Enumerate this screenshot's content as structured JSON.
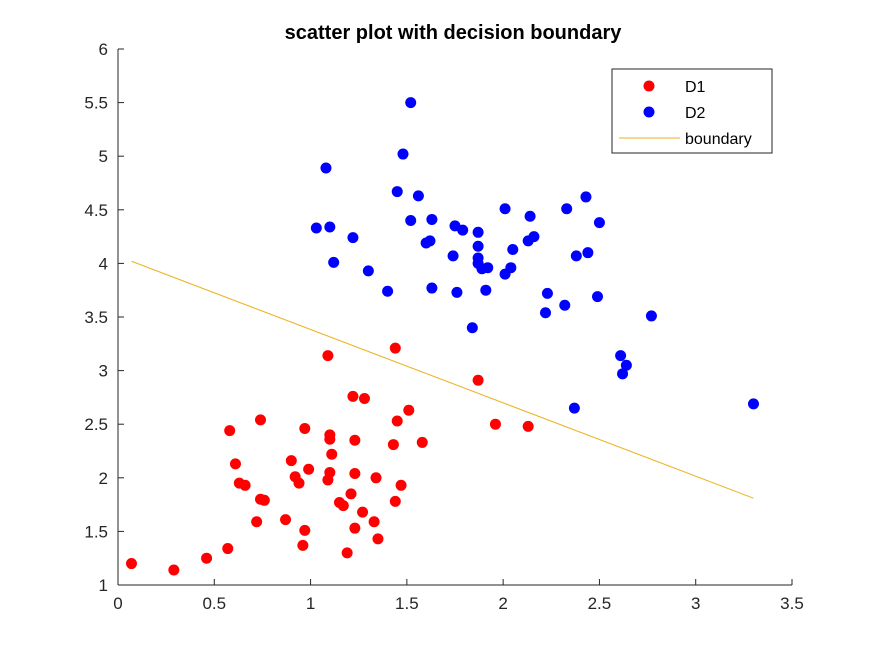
{
  "chart_data": {
    "type": "scatter",
    "title": "scatter plot with decision boundary",
    "xlabel": "",
    "ylabel": "",
    "xlim": [
      0,
      3.5
    ],
    "ylim": [
      1,
      6
    ],
    "xticks": [
      "0",
      "0.5",
      "1",
      "1.5",
      "2",
      "2.5",
      "3",
      "3.5"
    ],
    "yticks": [
      "1",
      "1.5",
      "2",
      "2.5",
      "3",
      "3.5",
      "4",
      "4.5",
      "5",
      "5.5",
      "6"
    ],
    "grid": false,
    "legend_position": "top-right",
    "series": [
      {
        "name": "D1",
        "kind": "points",
        "color": "#ff0000",
        "points": [
          [
            0.07,
            1.2
          ],
          [
            0.29,
            1.14
          ],
          [
            0.46,
            1.25
          ],
          [
            0.57,
            1.34
          ],
          [
            0.58,
            2.44
          ],
          [
            0.61,
            2.13
          ],
          [
            0.63,
            1.95
          ],
          [
            0.66,
            1.93
          ],
          [
            0.72,
            1.59
          ],
          [
            0.74,
            2.54
          ],
          [
            0.74,
            1.8
          ],
          [
            0.76,
            1.79
          ],
          [
            0.87,
            1.61
          ],
          [
            0.9,
            2.16
          ],
          [
            0.92,
            2.01
          ],
          [
            0.94,
            1.95
          ],
          [
            0.96,
            1.37
          ],
          [
            0.97,
            1.51
          ],
          [
            0.97,
            2.46
          ],
          [
            0.99,
            2.08
          ],
          [
            1.09,
            1.98
          ],
          [
            1.1,
            2.05
          ],
          [
            1.1,
            2.36
          ],
          [
            1.1,
            2.4
          ],
          [
            1.11,
            2.22
          ],
          [
            1.09,
            3.14
          ],
          [
            1.15,
            1.77
          ],
          [
            1.17,
            1.74
          ],
          [
            1.19,
            1.3
          ],
          [
            1.21,
            1.85
          ],
          [
            1.22,
            2.76
          ],
          [
            1.23,
            2.04
          ],
          [
            1.23,
            1.53
          ],
          [
            1.23,
            2.35
          ],
          [
            1.27,
            1.68
          ],
          [
            1.28,
            2.74
          ],
          [
            1.33,
            1.59
          ],
          [
            1.34,
            2.0
          ],
          [
            1.35,
            1.43
          ],
          [
            1.43,
            2.31
          ],
          [
            1.44,
            1.78
          ],
          [
            1.45,
            2.53
          ],
          [
            1.44,
            3.21
          ],
          [
            1.47,
            1.93
          ],
          [
            1.51,
            2.63
          ],
          [
            1.58,
            2.33
          ],
          [
            1.87,
            2.91
          ],
          [
            1.96,
            2.5
          ],
          [
            2.13,
            2.48
          ]
        ]
      },
      {
        "name": "D2",
        "kind": "points",
        "color": "#0000ff",
        "points": [
          [
            1.03,
            4.33
          ],
          [
            1.08,
            4.89
          ],
          [
            1.1,
            4.34
          ],
          [
            1.12,
            4.01
          ],
          [
            1.22,
            4.24
          ],
          [
            1.3,
            3.93
          ],
          [
            1.4,
            3.74
          ],
          [
            1.45,
            4.67
          ],
          [
            1.48,
            5.02
          ],
          [
            1.52,
            5.5
          ],
          [
            1.52,
            4.4
          ],
          [
            1.56,
            4.63
          ],
          [
            1.6,
            4.19
          ],
          [
            1.62,
            4.21
          ],
          [
            1.63,
            3.77
          ],
          [
            1.63,
            4.41
          ],
          [
            1.74,
            4.07
          ],
          [
            1.75,
            4.35
          ],
          [
            1.76,
            3.73
          ],
          [
            1.79,
            4.31
          ],
          [
            1.84,
            3.4
          ],
          [
            1.87,
            4.29
          ],
          [
            1.87,
            4.05
          ],
          [
            1.87,
            4.16
          ],
          [
            1.87,
            4.0
          ],
          [
            1.89,
            3.95
          ],
          [
            1.91,
            3.75
          ],
          [
            1.92,
            3.96
          ],
          [
            2.01,
            4.51
          ],
          [
            2.01,
            3.9
          ],
          [
            2.04,
            3.96
          ],
          [
            2.05,
            4.13
          ],
          [
            2.13,
            4.21
          ],
          [
            2.14,
            4.44
          ],
          [
            2.16,
            4.25
          ],
          [
            2.22,
            3.54
          ],
          [
            2.23,
            3.72
          ],
          [
            2.32,
            3.61
          ],
          [
            2.33,
            4.51
          ],
          [
            2.37,
            2.65
          ],
          [
            2.38,
            4.07
          ],
          [
            2.43,
            4.62
          ],
          [
            2.44,
            4.1
          ],
          [
            2.49,
            3.69
          ],
          [
            2.5,
            4.38
          ],
          [
            2.61,
            3.14
          ],
          [
            2.62,
            2.97
          ],
          [
            2.64,
            3.05
          ],
          [
            2.77,
            3.51
          ],
          [
            3.3,
            2.69
          ]
        ]
      },
      {
        "name": "boundary",
        "kind": "line",
        "color": "#edb120",
        "points": [
          [
            0.07,
            4.02
          ],
          [
            3.3,
            1.81
          ]
        ]
      }
    ]
  }
}
